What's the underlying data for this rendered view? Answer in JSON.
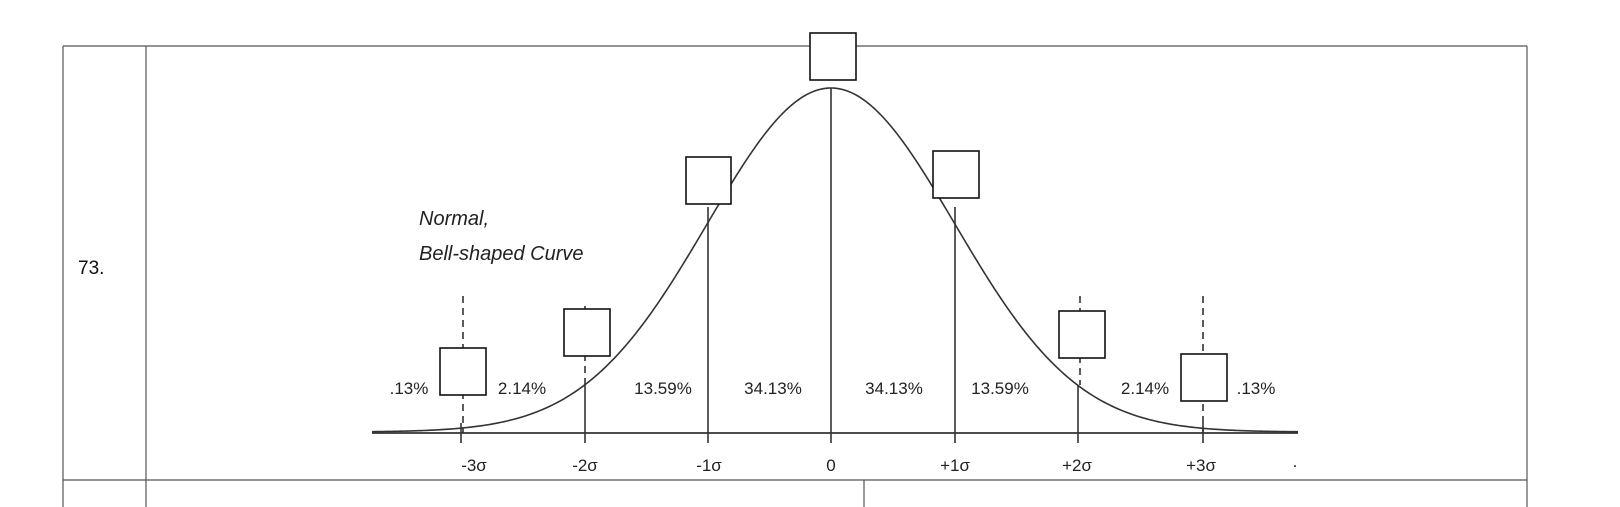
{
  "question": {
    "number": "73."
  },
  "diagram": {
    "caption_line1": "Normal,",
    "caption_line2": "Bell-shaped Curve",
    "axis_labels": [
      "-3σ",
      "-2σ",
      "-1σ",
      "0",
      "+1σ",
      "+2σ",
      "+3σ",
      "."
    ],
    "region_percentages": [
      ".13%",
      "2.14%",
      "13.59%",
      "34.13%",
      "34.13%",
      "13.59%",
      "2.14%",
      ".13%"
    ],
    "answer_boxes": [
      "",
      "",
      "",
      "",
      "",
      "",
      ""
    ]
  },
  "next_row": {
    "left_cell_text": "",
    "right_cell_text": ""
  }
}
